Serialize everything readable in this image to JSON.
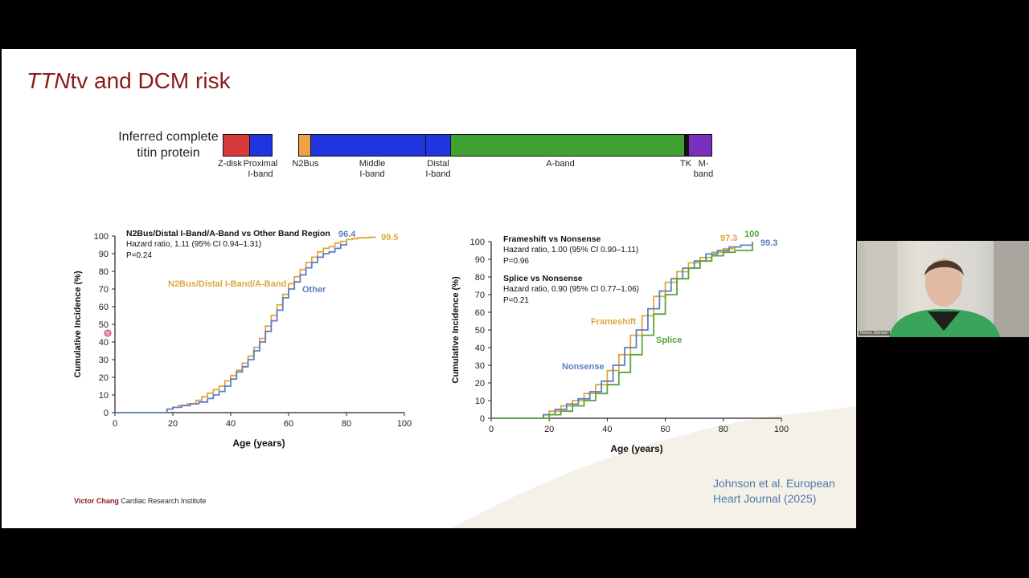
{
  "slide": {
    "title_italic": "TTN",
    "title_rest": "tv and DCM risk",
    "protein_label": "Inferred complete titin protein",
    "regions": [
      {
        "id": "z-disk",
        "label": "Z-disk"
      },
      {
        "id": "proximal-i-band",
        "label": "Proximal I-band"
      },
      {
        "id": "n2bus",
        "label": "N2Bus"
      },
      {
        "id": "middle-i-band",
        "label": "Middle I-band"
      },
      {
        "id": "distal-i-band",
        "label": "Distal I-band"
      },
      {
        "id": "a-band",
        "label": "A-band"
      },
      {
        "id": "tk",
        "label": "TK"
      },
      {
        "id": "m-band",
        "label": "M-band"
      }
    ],
    "colors": {
      "z_disk": "#d63a3a",
      "i_band": "#2035e0",
      "n2bus": "#f0a143",
      "a_band": "#3fa132",
      "tk": "#111111",
      "m_band": "#7a2fbd",
      "title": "#8b1a1a",
      "citation": "#4b7aa8"
    },
    "footer_brand": "Victor Chang",
    "footer_rest": "Cardiac Research Institute",
    "citation": "Johnson et al. European Heart Journal (2025)"
  },
  "chart_data": [
    {
      "type": "line",
      "step": true,
      "header": "N2Bus/Distal I-Band/A-Band vs Other Band Region",
      "stat_line1": "Hazard ratio, 1.11 (95% CI 0.94–1.31)",
      "stat_line2": "P=0.24",
      "xlabel": "Age (years)",
      "ylabel": "Cumulative Incidence (%)",
      "xlim": [
        0,
        100
      ],
      "ylim": [
        0,
        100
      ],
      "xticks": [
        0,
        20,
        40,
        60,
        80,
        100
      ],
      "yticks": [
        0,
        10,
        20,
        30,
        40,
        50,
        60,
        70,
        80,
        90,
        100
      ],
      "series": [
        {
          "name": "N2Bus/Distal I-Band/A-Band",
          "color": "#e0a53c",
          "end_label": "99.5",
          "x": [
            0,
            15,
            18,
            20,
            22,
            25,
            28,
            30,
            32,
            34,
            36,
            38,
            40,
            42,
            44,
            46,
            48,
            50,
            52,
            54,
            56,
            58,
            60,
            62,
            64,
            66,
            68,
            70,
            72,
            74,
            76,
            78,
            80,
            82,
            84,
            86,
            88,
            90
          ],
          "y": [
            0,
            0,
            2,
            3,
            4,
            5,
            7,
            9,
            11,
            13,
            15,
            18,
            21,
            24,
            28,
            32,
            37,
            42,
            49,
            55,
            61,
            67,
            73,
            77,
            81,
            85,
            88,
            91,
            93,
            94,
            96,
            97,
            98,
            98.5,
            99,
            99,
            99.3,
            99.5
          ]
        },
        {
          "name": "Other",
          "color": "#5b7fc0",
          "end_label": "96.4",
          "x": [
            0,
            16,
            18,
            20,
            23,
            26,
            29,
            32,
            34,
            36,
            38,
            40,
            42,
            44,
            46,
            48,
            50,
            52,
            54,
            56,
            58,
            60,
            62,
            64,
            66,
            68,
            70,
            72,
            74,
            76,
            78,
            80
          ],
          "y": [
            0,
            0,
            2,
            3,
            4,
            5,
            6,
            8,
            10,
            12,
            15,
            19,
            23,
            26,
            30,
            35,
            40,
            46,
            52,
            58,
            65,
            70,
            74,
            78,
            82,
            85,
            88,
            90,
            91,
            93,
            95,
            96.4
          ]
        }
      ]
    },
    {
      "type": "line",
      "step": true,
      "header1": "Frameshift vs Nonsense",
      "stat1_line1": "Hazard ratio, 1.00 (95% CI 0.90–1.11)",
      "stat1_line2": "P=0.96",
      "header2": "Splice vs Nonsense",
      "stat2_line1": "Hazard ratio, 0.90 (95% CI 0.77–1.06)",
      "stat2_line2": "P=0.21",
      "xlabel": "Age (years)",
      "ylabel": "Cumulative Incidence (%)",
      "xlim": [
        0,
        100
      ],
      "ylim": [
        0,
        100
      ],
      "xticks": [
        0,
        20,
        40,
        60,
        80,
        100
      ],
      "yticks": [
        0,
        10,
        20,
        30,
        40,
        50,
        60,
        70,
        80,
        90,
        100
      ],
      "series": [
        {
          "name": "Frameshift",
          "color": "#e0a53c",
          "end_label": "97.3",
          "x": [
            0,
            15,
            18,
            20,
            24,
            28,
            32,
            36,
            40,
            44,
            48,
            52,
            56,
            60,
            64,
            68,
            72,
            76,
            80,
            84
          ],
          "y": [
            0,
            0,
            2,
            4,
            7,
            10,
            14,
            19,
            27,
            36,
            47,
            58,
            69,
            77,
            83,
            88,
            91,
            94,
            96,
            97.3
          ]
        },
        {
          "name": "Nonsense",
          "color": "#5b7fc0",
          "end_label": "99.3",
          "x": [
            0,
            15,
            18,
            22,
            26,
            30,
            34,
            38,
            42,
            46,
            50,
            54,
            58,
            62,
            66,
            70,
            74,
            78,
            82,
            86,
            90
          ],
          "y": [
            0,
            0,
            2,
            5,
            8,
            11,
            15,
            21,
            30,
            40,
            50,
            62,
            72,
            79,
            85,
            89,
            93,
            95,
            97,
            98,
            99.3
          ]
        },
        {
          "name": "Splice",
          "color": "#5aa33a",
          "end_label": "100",
          "x": [
            0,
            16,
            20,
            24,
            28,
            32,
            36,
            40,
            44,
            48,
            52,
            56,
            60,
            64,
            68,
            72,
            76,
            80,
            84,
            88,
            90
          ],
          "y": [
            0,
            0,
            2,
            4,
            7,
            10,
            14,
            19,
            26,
            36,
            47,
            59,
            70,
            79,
            85,
            89,
            92,
            94,
            95,
            95,
            100
          ]
        }
      ]
    }
  ],
  "webcam": {
    "name_tag": "Renee Johnson"
  }
}
